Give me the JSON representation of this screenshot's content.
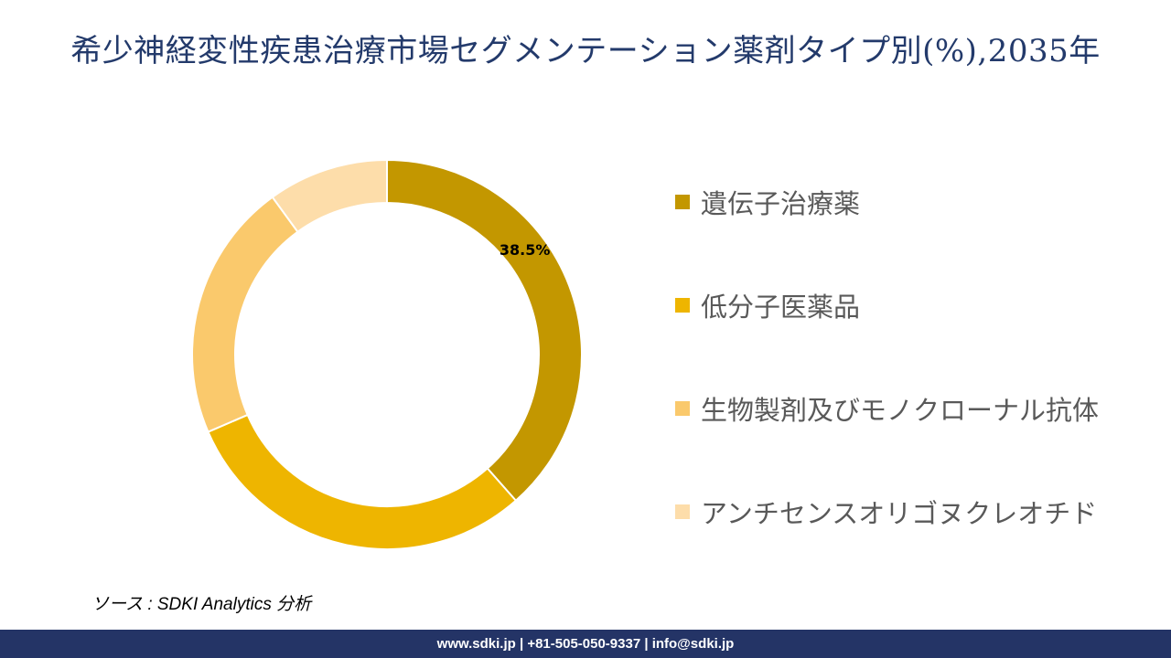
{
  "chart_data": {
    "type": "pie",
    "title": "希少神経変性疾患治療市場セグメンテーション薬剤タイプ別(%),2035年",
    "categories": [
      "遺伝子治療薬",
      "低分子医薬品",
      "生物製剤及びモノクローナル抗体",
      "アンチセンスオリゴヌクレオチド"
    ],
    "values": [
      38.5,
      30,
      21.5,
      10
    ],
    "data_labels": [
      "38.5%",
      "",
      "",
      ""
    ],
    "colors": [
      "#C39700",
      "#EEB500",
      "#FAC96C",
      "#FDDDAA"
    ],
    "donut": true,
    "legend_position": "right"
  },
  "source": "ソース : SDKI Analytics 分析",
  "footer": "www.sdki.jp | +81-505-050-9337 | info@sdki.jp"
}
